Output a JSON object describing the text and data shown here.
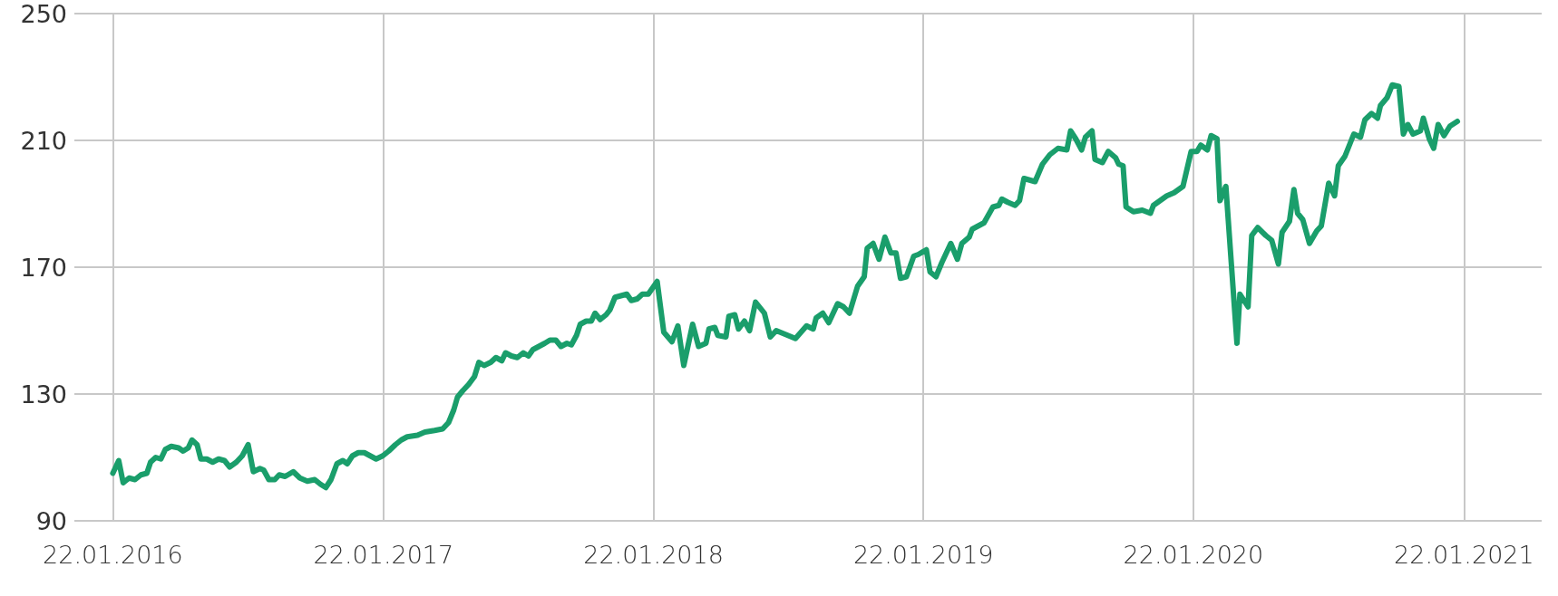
{
  "chart_data": {
    "type": "line",
    "grid": true,
    "marker": "none",
    "line_style": "solid",
    "xlim": [
      "2015-12-01",
      "2021-05-07"
    ],
    "xticks": [
      {
        "value": "2016-01-22",
        "label": "22.01.2016"
      },
      {
        "value": "2017-01-22",
        "label": "22.01.2017"
      },
      {
        "value": "2018-01-22",
        "label": "22.01.2018"
      },
      {
        "value": "2019-01-22",
        "label": "22.01.2019"
      },
      {
        "value": "2020-01-22",
        "label": "22.01.2020"
      },
      {
        "value": "2021-01-22",
        "label": "22.01.2021"
      }
    ],
    "ylim": [
      90,
      250
    ],
    "yticks": [
      90,
      130,
      170,
      210,
      250
    ],
    "x": [
      "2016-01-22",
      "2016-01-30",
      "2016-02-05",
      "2016-02-13",
      "2016-02-21",
      "2016-02-29",
      "2016-03-08",
      "2016-03-13",
      "2016-03-20",
      "2016-03-27",
      "2016-04-02",
      "2016-04-10",
      "2016-04-20",
      "2016-04-26",
      "2016-05-03",
      "2016-05-08",
      "2016-05-15",
      "2016-05-20",
      "2016-05-28",
      "2016-06-05",
      "2016-06-13",
      "2016-06-21",
      "2016-06-28",
      "2016-07-07",
      "2016-07-15",
      "2016-07-23",
      "2016-07-30",
      "2016-08-08",
      "2016-08-13",
      "2016-08-20",
      "2016-08-28",
      "2016-09-03",
      "2016-09-11",
      "2016-09-22",
      "2016-10-01",
      "2016-10-11",
      "2016-10-21",
      "2016-10-29",
      "2016-11-05",
      "2016-11-12",
      "2016-11-20",
      "2016-11-28",
      "2016-12-04",
      "2016-12-11",
      "2016-12-19",
      "2016-12-27",
      "2017-01-04",
      "2017-01-12",
      "2017-01-21",
      "2017-01-29",
      "2017-02-07",
      "2017-02-15",
      "2017-02-23",
      "2017-03-09",
      "2017-03-19",
      "2017-04-01",
      "2017-04-12",
      "2017-04-20",
      "2017-04-27",
      "2017-05-02",
      "2017-05-09",
      "2017-05-17",
      "2017-05-25",
      "2017-05-31",
      "2017-06-07",
      "2017-06-16",
      "2017-06-23",
      "2017-07-01",
      "2017-07-06",
      "2017-07-14",
      "2017-07-22",
      "2017-07-30",
      "2017-08-06",
      "2017-08-12",
      "2017-08-20",
      "2017-08-28",
      "2017-09-04",
      "2017-09-12",
      "2017-09-19",
      "2017-09-27",
      "2017-10-03",
      "2017-10-10",
      "2017-10-15",
      "2017-10-23",
      "2017-10-30",
      "2017-11-04",
      "2017-11-11",
      "2017-11-19",
      "2017-11-24",
      "2017-12-01",
      "2017-12-09",
      "2017-12-17",
      "2017-12-23",
      "2017-12-31",
      "2018-01-07",
      "2018-01-15",
      "2018-01-27",
      "2018-02-05",
      "2018-02-16",
      "2018-02-24",
      "2018-03-04",
      "2018-03-16",
      "2018-03-24",
      "2018-04-03",
      "2018-04-07",
      "2018-04-15",
      "2018-04-19",
      "2018-04-30",
      "2018-05-04",
      "2018-05-12",
      "2018-05-17",
      "2018-05-25",
      "2018-06-01",
      "2018-06-09",
      "2018-06-21",
      "2018-06-29",
      "2018-07-07",
      "2018-08-02",
      "2018-08-17",
      "2018-08-26",
      "2018-08-30",
      "2018-09-08",
      "2018-09-16",
      "2018-09-28",
      "2018-10-06",
      "2018-10-14",
      "2018-10-25",
      "2018-11-03",
      "2018-11-07",
      "2018-11-15",
      "2018-11-23",
      "2018-12-01",
      "2018-12-09",
      "2018-12-16",
      "2018-12-22",
      "2018-12-30",
      "2019-01-09",
      "2019-01-15",
      "2019-01-26",
      "2019-01-31",
      "2019-02-08",
      "2019-02-16",
      "2019-02-28",
      "2019-03-09",
      "2019-03-15",
      "2019-03-25",
      "2019-03-29",
      "2019-04-14",
      "2019-04-26",
      "2019-05-04",
      "2019-05-08",
      "2019-05-16",
      "2019-05-26",
      "2019-06-01",
      "2019-06-07",
      "2019-06-22",
      "2019-07-02",
      "2019-07-12",
      "2019-07-23",
      "2019-08-04",
      "2019-08-09",
      "2019-08-16",
      "2019-08-24",
      "2019-08-29",
      "2019-09-07",
      "2019-09-11",
      "2019-09-21",
      "2019-09-29",
      "2019-10-09",
      "2019-10-13",
      "2019-10-19",
      "2019-10-23",
      "2019-11-02",
      "2019-11-14",
      "2019-11-25",
      "2019-11-29",
      "2019-12-08",
      "2019-12-17",
      "2019-12-27",
      "2020-01-08",
      "2020-01-15",
      "2020-01-19",
      "2020-01-27",
      "2020-02-01",
      "2020-02-10",
      "2020-02-15",
      "2020-02-23",
      "2020-02-27",
      "2020-03-06",
      "2020-03-21",
      "2020-03-25",
      "2020-04-05",
      "2020-04-10",
      "2020-04-18",
      "2020-04-29",
      "2020-05-07",
      "2020-05-16",
      "2020-05-21",
      "2020-05-31",
      "2020-06-06",
      "2020-06-11",
      "2020-06-18",
      "2020-06-27",
      "2020-07-07",
      "2020-07-13",
      "2020-07-23",
      "2020-07-31",
      "2020-08-05",
      "2020-08-14",
      "2020-08-26",
      "2020-09-04",
      "2020-09-10",
      "2020-09-19",
      "2020-09-27",
      "2020-10-01",
      "2020-10-10",
      "2020-10-17",
      "2020-10-26",
      "2020-11-01",
      "2020-11-07",
      "2020-11-14",
      "2020-11-24",
      "2020-11-28",
      "2020-12-06",
      "2020-12-12",
      "2020-12-18",
      "2020-12-26",
      "2021-01-03",
      "2021-01-13"
    ],
    "series": [
      {
        "color": "#1a9e6b",
        "values": [
          105,
          109,
          102,
          103.5,
          103,
          104.5,
          105,
          108.5,
          110,
          109.5,
          112.5,
          113.5,
          113,
          112,
          113,
          115.5,
          114,
          109.5,
          109.5,
          108.5,
          109.5,
          109,
          107,
          108.5,
          110.5,
          114,
          105.5,
          106.5,
          106,
          103,
          103,
          104.5,
          104,
          105.5,
          103.5,
          102.5,
          103,
          101.5,
          100.5,
          103,
          108,
          109,
          108,
          110.5,
          111.5,
          111.5,
          110.5,
          109.5,
          110.5,
          112,
          114,
          115.5,
          116.5,
          117,
          118,
          118.5,
          119,
          121,
          125,
          129,
          131,
          133,
          135.5,
          140,
          139,
          140,
          141.5,
          140.5,
          143,
          142,
          141.5,
          143,
          142,
          144,
          145,
          146,
          147,
          147,
          145,
          146,
          145.5,
          148.5,
          152,
          153,
          153,
          155.5,
          153.5,
          155,
          156.5,
          160.5,
          161,
          161.5,
          159.5,
          160,
          161.5,
          161.5,
          165.5,
          149.5,
          146.5,
          151.5,
          139,
          152,
          145,
          146,
          150.5,
          151,
          148.5,
          148,
          154.5,
          155,
          150.5,
          153,
          150,
          159,
          155.5,
          148,
          150,
          147.5,
          151.5,
          150.5,
          154,
          155.5,
          152.5,
          158.5,
          157.5,
          155.5,
          164,
          167,
          176,
          177.5,
          172.5,
          179.5,
          174.5,
          174.5,
          166.5,
          167,
          173.5,
          174,
          175.5,
          168.5,
          167,
          171.5,
          177.5,
          172.5,
          177.5,
          179.5,
          182,
          184,
          189,
          189.5,
          191.5,
          190.5,
          189.5,
          191,
          198,
          197,
          202.5,
          205.5,
          207.5,
          207,
          213,
          210.5,
          207,
          211,
          213,
          204,
          203,
          206.5,
          204.5,
          202.5,
          202,
          189,
          187.5,
          188,
          187,
          189.5,
          191,
          192.5,
          193.5,
          195.5,
          202.5,
          206.5,
          206.5,
          208.5,
          207,
          211.5,
          210.5,
          191,
          195.5,
          146,
          161.5,
          157.5,
          180,
          182.5,
          180,
          178.5,
          171,
          181,
          184.5,
          194.5,
          187,
          185,
          177.5,
          181.5,
          183,
          196.5,
          192.5,
          202,
          205,
          212,
          211,
          216.5,
          218.5,
          217,
          221,
          223.5,
          227.5,
          227,
          212,
          215,
          212,
          213,
          217,
          210.5,
          207.5,
          215,
          211.5,
          214.5,
          216
        ]
      }
    ]
  }
}
